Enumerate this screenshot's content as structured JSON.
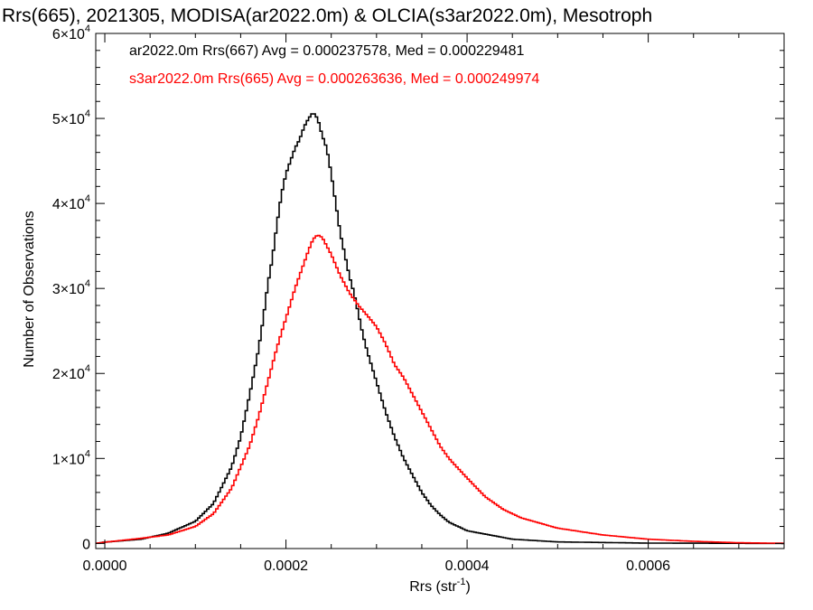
{
  "chart_data": {
    "type": "line",
    "title": "Rrs(665), 2021305, MODISA(ar2022.0m) & OLCIA(s3ar2022.0m), Mesotroph",
    "xlabel": "Rrs (str",
    "xlabel_sup": "-1",
    "xlabel_end": ")",
    "ylabel": "Number of Observations",
    "xlim": [
      -1e-05,
      0.00075
    ],
    "ylim": [
      -600,
      60000
    ],
    "x_ticks": [
      {
        "value": 0.0,
        "label": "0.0000"
      },
      {
        "value": 0.0002,
        "label": "0.0002"
      },
      {
        "value": 0.0004,
        "label": "0.0004"
      },
      {
        "value": 0.0006,
        "label": "0.0006"
      }
    ],
    "y_ticks": [
      {
        "value": 0,
        "mant": "0",
        "exp": ""
      },
      {
        "value": 10000,
        "mant": "1×10",
        "exp": "4"
      },
      {
        "value": 20000,
        "mant": "2×10",
        "exp": "4"
      },
      {
        "value": 30000,
        "mant": "3×10",
        "exp": "4"
      },
      {
        "value": 40000,
        "mant": "4×10",
        "exp": "4"
      },
      {
        "value": 50000,
        "mant": "5×10",
        "exp": "4"
      },
      {
        "value": 60000,
        "mant": "6×10",
        "exp": "4"
      }
    ],
    "grid": false,
    "series": [
      {
        "label": "ar2022.0m Rrs(667) Avg = 0.000237578, Med = 0.000229481",
        "color": "#000000",
        "points": [
          [
            -1e-05,
            0
          ],
          [
            0.0,
            150
          ],
          [
            4e-05,
            500
          ],
          [
            7e-05,
            1200
          ],
          [
            0.0001,
            2600
          ],
          [
            0.00012,
            4700
          ],
          [
            0.00014,
            9000
          ],
          [
            0.00015,
            12500
          ],
          [
            0.00016,
            17500
          ],
          [
            0.00017,
            23000
          ],
          [
            0.000175,
            26500
          ],
          [
            0.00018,
            30500
          ],
          [
            0.000185,
            33500
          ],
          [
            0.00019,
            37500
          ],
          [
            0.000195,
            41000
          ],
          [
            0.0002,
            43500
          ],
          [
            0.000205,
            45000
          ],
          [
            0.00021,
            46500
          ],
          [
            0.000215,
            47500
          ],
          [
            0.00022,
            49000
          ],
          [
            0.000225,
            50000
          ],
          [
            0.00023,
            50700
          ],
          [
            0.000235,
            50000
          ],
          [
            0.00024,
            48000
          ],
          [
            0.000245,
            46500
          ],
          [
            0.00025,
            43500
          ],
          [
            0.000255,
            40000
          ],
          [
            0.00026,
            36500
          ],
          [
            0.000265,
            34000
          ],
          [
            0.00027,
            31500
          ],
          [
            0.000275,
            29500
          ],
          [
            0.00028,
            27000
          ],
          [
            0.000285,
            24500
          ],
          [
            0.00029,
            22500
          ],
          [
            0.0003,
            19000
          ],
          [
            0.00031,
            15500
          ],
          [
            0.00032,
            12500
          ],
          [
            0.00033,
            10000
          ],
          [
            0.00034,
            8000
          ],
          [
            0.00035,
            6000
          ],
          [
            0.00036,
            4500
          ],
          [
            0.00037,
            3400
          ],
          [
            0.00038,
            2500
          ],
          [
            0.0004,
            1500
          ],
          [
            0.00045,
            500
          ],
          [
            0.0005,
            180
          ],
          [
            0.0006,
            40
          ],
          [
            0.00075,
            0
          ]
        ]
      },
      {
        "label": "s3ar2022.0m Rrs(665) Avg = 0.000263636, Med = 0.000249974",
        "color": "#ff0000",
        "points": [
          [
            -1e-05,
            0
          ],
          [
            0.0,
            150
          ],
          [
            4e-05,
            600
          ],
          [
            7e-05,
            1000
          ],
          [
            0.0001,
            2000
          ],
          [
            0.00012,
            3500
          ],
          [
            0.00014,
            6500
          ],
          [
            0.00015,
            9000
          ],
          [
            0.00016,
            11500
          ],
          [
            0.00017,
            15000
          ],
          [
            0.00018,
            19000
          ],
          [
            0.00019,
            23000
          ],
          [
            0.0002,
            26500
          ],
          [
            0.00021,
            30000
          ],
          [
            0.00022,
            33000
          ],
          [
            0.000225,
            34500
          ],
          [
            0.00023,
            35800
          ],
          [
            0.000235,
            36300
          ],
          [
            0.00024,
            36000
          ],
          [
            0.000245,
            35000
          ],
          [
            0.00025,
            34000
          ],
          [
            0.00026,
            31500
          ],
          [
            0.00027,
            29500
          ],
          [
            0.00028,
            28000
          ],
          [
            0.00029,
            26800
          ],
          [
            0.0003,
            25500
          ],
          [
            0.00031,
            23500
          ],
          [
            0.00032,
            21000
          ],
          [
            0.00033,
            19500
          ],
          [
            0.00034,
            17500
          ],
          [
            0.00035,
            15500
          ],
          [
            0.00036,
            13500
          ],
          [
            0.00037,
            11500
          ],
          [
            0.00038,
            10000
          ],
          [
            0.0004,
            7700
          ],
          [
            0.00042,
            5500
          ],
          [
            0.00044,
            4000
          ],
          [
            0.00046,
            3000
          ],
          [
            0.0005,
            1800
          ],
          [
            0.00055,
            1000
          ],
          [
            0.0006,
            500
          ],
          [
            0.00065,
            250
          ],
          [
            0.0007,
            80
          ],
          [
            0.00075,
            20
          ]
        ]
      }
    ]
  }
}
